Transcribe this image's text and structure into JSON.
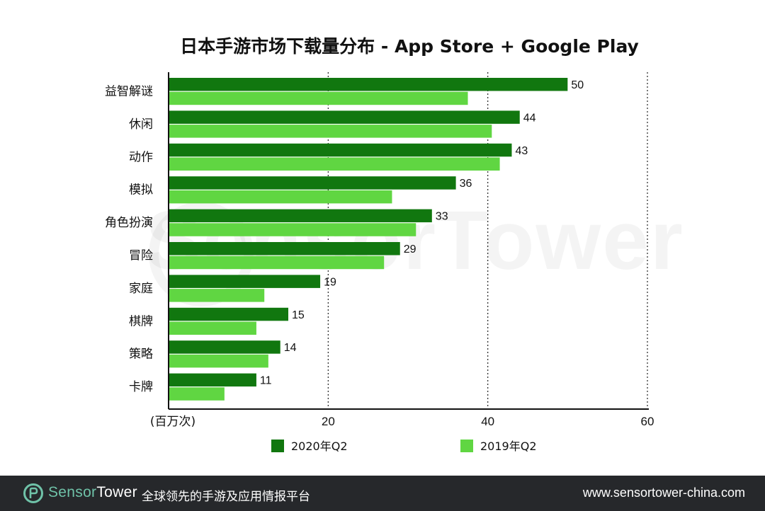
{
  "chart_data": {
    "type": "bar",
    "orientation": "horizontal",
    "title": "日本手游市场下载量分布 - App Store + Google Play",
    "xlabel": "(百万次)",
    "categories": [
      "益智解谜",
      "休闲",
      "动作",
      "模拟",
      "角色扮演",
      "冒险",
      "家庭",
      "棋牌",
      "策略",
      "卡牌"
    ],
    "series": [
      {
        "name": "2020年Q2",
        "color": "#11770f",
        "values": [
          50,
          44,
          43,
          36,
          33,
          29,
          19,
          15,
          14,
          11
        ],
        "labels": [
          "50",
          "44",
          "43",
          "36",
          "33",
          "29",
          "19",
          "15",
          "14",
          "11"
        ]
      },
      {
        "name": "2019年Q2",
        "color": "#60d642",
        "values": [
          37.5,
          40.5,
          41.5,
          28,
          31,
          27,
          12,
          11,
          12.5,
          7
        ]
      }
    ],
    "xlim": [
      0,
      60
    ],
    "xticks": [
      20,
      40,
      60
    ],
    "xtick_labels": [
      "20",
      "40",
      "60"
    ],
    "grid": "vertical-dotted",
    "legend_position": "bottom"
  },
  "watermark": "SensorTower",
  "footer": {
    "brand_part1": "Sensor",
    "brand_part2": "Tower",
    "slogan": "全球领先的手游及应用情报平台",
    "url": "www.sensortower-china.com"
  }
}
